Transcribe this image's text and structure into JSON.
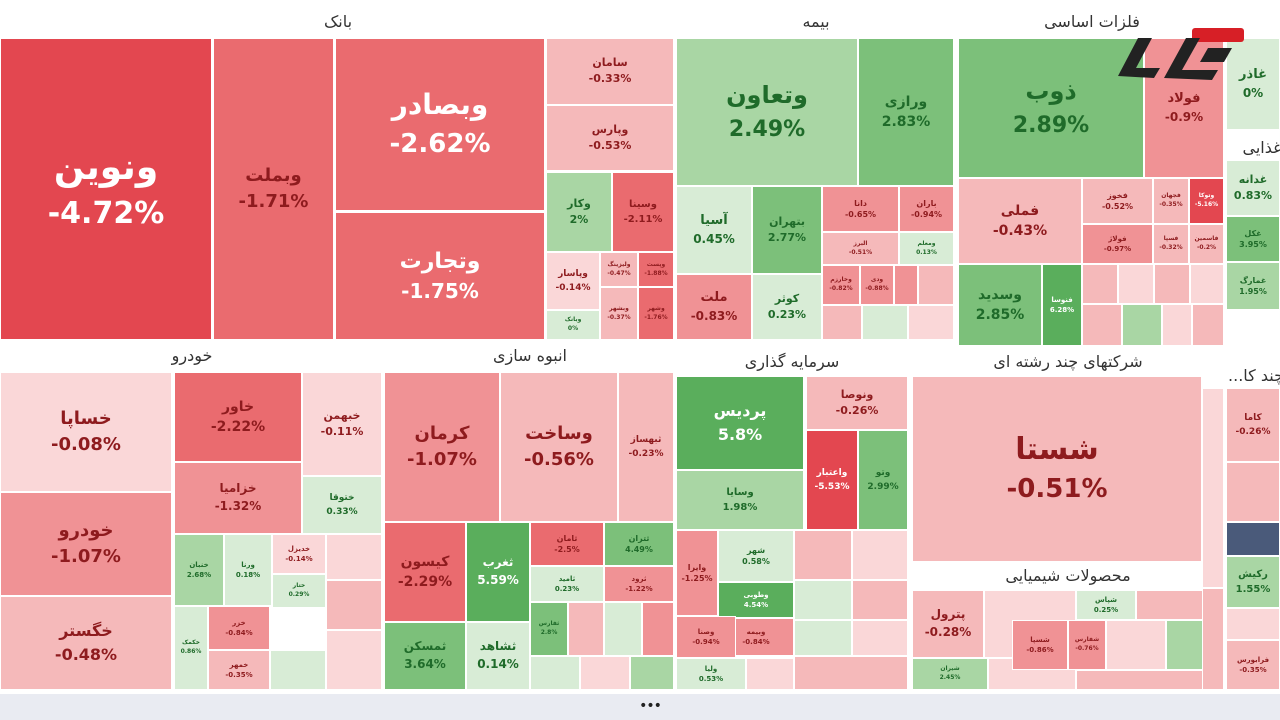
{
  "colors": {
    "neg5": "#e34750",
    "neg4": "#ea6b6f",
    "neg3": "#f09295",
    "neg2": "#f5b9ba",
    "neg1": "#fad7d8",
    "pos1": "#d8ecd6",
    "pos2": "#a9d6a4",
    "pos3": "#7cc07a",
    "pos4": "#5aae5c",
    "text_neg": "#8e1b1e",
    "text_pos": "#1f6b2a",
    "text_light": "#ffffff",
    "dark_tile": "#4a5a7a"
  },
  "chart_data": {
    "type": "treemap",
    "sectors": [
      {
        "name": "بانک",
        "tiles": [
          {
            "name": "ونوین",
            "change": -4.72
          },
          {
            "name": "وبملت",
            "change": -1.71
          },
          {
            "name": "وبصادر",
            "change": -2.62
          },
          {
            "name": "وتجارت",
            "change": -1.75
          },
          {
            "name": "سامان",
            "change": -0.33
          },
          {
            "name": "وپارس",
            "change": -0.53
          },
          {
            "name": "وکار",
            "change": 2
          },
          {
            "name": "وسینا",
            "change": -2.11
          },
          {
            "name": "وپاسار",
            "change": -0.14
          },
          {
            "name": "ولیزینگ",
            "change": -0.47
          },
          {
            "name": "وپست",
            "change": -1.88
          },
          {
            "name": "وبانک",
            "change": 0
          },
          {
            "name": "وبشهر",
            "change": -0.37
          },
          {
            "name": "وشهر",
            "change": -1.76
          }
        ]
      },
      {
        "name": "بیمه",
        "tiles": [
          {
            "name": "وتعاون",
            "change": 2.49
          },
          {
            "name": "ورازی",
            "change": 2.83
          },
          {
            "name": "آسیا",
            "change": 0.45
          },
          {
            "name": "بتهران",
            "change": 2.77
          },
          {
            "name": "ملت",
            "change": -0.83
          },
          {
            "name": "کوثر",
            "change": 0.23
          },
          {
            "name": "دانا",
            "change": -0.65
          },
          {
            "name": "باران",
            "change": -0.94
          },
          {
            "name": "البرز",
            "change": -0.51
          },
          {
            "name": "ومعلم",
            "change": 0.13
          },
          {
            "name": "وخارزم",
            "change": -0.82
          },
          {
            "name": "ودی",
            "change": -0.88
          }
        ]
      },
      {
        "name": "فلزات اساسی",
        "tiles": [
          {
            "name": "ذوب",
            "change": 2.89
          },
          {
            "name": "فولاد",
            "change": -0.9
          },
          {
            "name": "فملی",
            "change": -0.43
          },
          {
            "name": "فخوز",
            "change": -0.52
          },
          {
            "name": "فولاژ",
            "change": -0.97
          },
          {
            "name": "فجهان",
            "change": -0.35
          },
          {
            "name": "فسپا",
            "change": -0.32
          },
          {
            "name": "وتوکا",
            "change": -5.16
          },
          {
            "name": "فاسمین",
            "change": -0.2
          },
          {
            "name": "وسدید",
            "change": 2.85
          },
          {
            "name": "فنوسا",
            "change": 6.28
          }
        ]
      },
      {
        "name": "غذایی",
        "tiles": [
          {
            "name": "غدانه",
            "change": 0.83
          },
          {
            "name": "غکل",
            "change": 3.95
          },
          {
            "name": "غمارگ",
            "change": 1.95
          },
          {
            "name": "غاذر",
            "change": -0.0
          }
        ]
      },
      {
        "name": "خودرو",
        "tiles": [
          {
            "name": "خساپا",
            "change": -0.08
          },
          {
            "name": "خودرو",
            "change": -1.07
          },
          {
            "name": "خگستر",
            "change": -0.48
          },
          {
            "name": "خاور",
            "change": -2.22
          },
          {
            "name": "خبهمن",
            "change": -0.11
          },
          {
            "name": "خزامیا",
            "change": -1.32
          },
          {
            "name": "ختوقا",
            "change": 0.33
          },
          {
            "name": "خنبان",
            "change": 2.68
          },
          {
            "name": "ورنا",
            "change": 0.18
          },
          {
            "name": "خدیزل",
            "change": -0.14
          },
          {
            "name": "خکمک",
            "change": 0.86
          },
          {
            "name": "خزر",
            "change": -0.84
          },
          {
            "name": "خمهر",
            "change": -0.35
          },
          {
            "name": "ختار",
            "change": 0.29
          }
        ]
      },
      {
        "name": "انبوه سازی",
        "tiles": [
          {
            "name": "کرمان",
            "change": -1.07
          },
          {
            "name": "وساخت",
            "change": -0.56
          },
          {
            "name": "ثبهساز",
            "change": -0.23
          },
          {
            "name": "کیسون",
            "change": -2.29
          },
          {
            "name": "ثغرب",
            "change": 5.59
          },
          {
            "name": "ثامان",
            "change": -2.5
          },
          {
            "name": "ثتران",
            "change": 4.49
          },
          {
            "name": "ثامید",
            "change": 0.23
          },
          {
            "name": "ثرود",
            "change": -1.22
          },
          {
            "name": "ثمسکن",
            "change": 3.64
          },
          {
            "name": "ثشاهد",
            "change": 0.14
          },
          {
            "name": "ثفارس",
            "change": 2.8
          }
        ]
      },
      {
        "name": "سرمایه گذاری",
        "tiles": [
          {
            "name": "پردیس",
            "change": 5.8
          },
          {
            "name": "ونوصا",
            "change": -0.26
          },
          {
            "name": "واعتبار",
            "change": -5.53
          },
          {
            "name": "وتو",
            "change": 2.99
          },
          {
            "name": "وسایا",
            "change": 1.98
          },
          {
            "name": "وایرا",
            "change": -1.25
          },
          {
            "name": "شهر",
            "change": 0.58
          },
          {
            "name": "وطوبی",
            "change": 4.54
          },
          {
            "name": "وبیمه",
            "change": -0.84
          },
          {
            "name": "وصنا",
            "change": -0.94
          },
          {
            "name": "ولیا",
            "change": 0.53
          }
        ]
      },
      {
        "name": "شرکتهای چند رشته ای",
        "tiles": [
          {
            "name": "شستا",
            "change": -0.51
          }
        ]
      },
      {
        "name": "محصولات شیمیایی",
        "tiles": [
          {
            "name": "پترول",
            "change": -0.28
          },
          {
            "name": "شپاس",
            "change": 0.25
          },
          {
            "name": "شیران",
            "change": 2.45
          },
          {
            "name": "شسپا",
            "change": -0.86
          },
          {
            "name": "شفارس",
            "change": -0.76
          }
        ]
      },
      {
        "name": "چند کا...",
        "tiles": [
          {
            "name": "کاما",
            "change": -0.26
          },
          {
            "name": "رکیش",
            "change": 1.55
          },
          {
            "name": "فرابورس",
            "change": -0.35
          }
        ]
      }
    ]
  },
  "pager_text": "•••"
}
